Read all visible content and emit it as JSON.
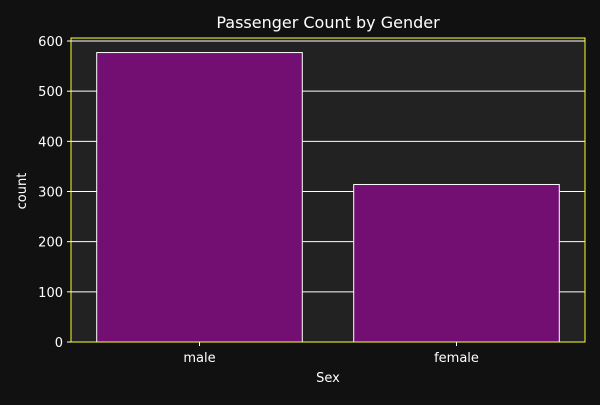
{
  "chart_data": {
    "type": "bar",
    "title": "Passenger Count by Gender",
    "xlabel": "Sex",
    "ylabel": "count",
    "categories": [
      "male",
      "female"
    ],
    "values": [
      577,
      314
    ],
    "ylim": [
      0,
      606
    ],
    "yticks": [
      0,
      100,
      200,
      300,
      400,
      500,
      600
    ],
    "grid": true,
    "colors": {
      "background": "#111111",
      "plot_background": "#222222",
      "bar_fill": "#730f73",
      "bar_edge": "#ffffff",
      "grid": "#ffffff",
      "axes_frame": "#ffff33",
      "text": "#ffffff"
    }
  }
}
